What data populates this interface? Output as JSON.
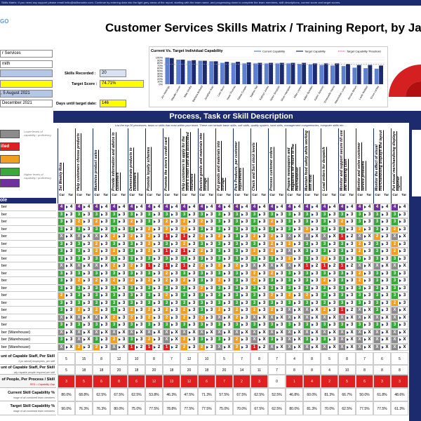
{
  "header": {
    "notice": "Skills Matrix:  If you need any support please email hello@skillsmatrix.com. Continue by entering data into the light grey areas of the report, starting with the team name, and progressing down to complete the team members, skill descriptions, current score and target scores.",
    "logo": "GO",
    "title": "Customer Services Skills Matrix / Training Report, by Jan"
  },
  "info": {
    "department": "r Services",
    "manager": "mith",
    "skills_recorded_label": "Skills Recorded :",
    "skills_recorded": "20",
    "target_score_label": "Target Score :",
    "target_score": "74.71%",
    "start_date": ", 5 August 2021",
    "target_date": "December 2021",
    "days_label": "Days until target date:",
    "days": "146"
  },
  "chart_data": {
    "type": "bar",
    "title": "Current Vs. Target Individual Capability",
    "categories": [
      "Jim Hastings",
      "Maudie Lemon",
      "Mike Ondra",
      "Barbara Binkard",
      "Jonathan Kian",
      "Liam Bunn",
      "Isaac Thomas",
      "Tobias Cooper",
      "Nathan Tait",
      "Kathryn Jones",
      "Helen Simpson",
      "Oliver Hampton",
      "Mike Leyton",
      "Adam Bywater",
      "Karen Jackson",
      "Emanuelle Harris",
      "Maximillian Lance",
      "Kenzie Atrium",
      "Louie Webber",
      "Grove Lanley"
    ],
    "series": [
      {
        "name": "Current Capability",
        "color": "#5b7fd1",
        "values": [
          100,
          92,
          88,
          88,
          86,
          80,
          80,
          78,
          78,
          78,
          78,
          78,
          76,
          74,
          72,
          70,
          68,
          62,
          60,
          58
        ]
      },
      {
        "name": "Target Capability",
        "color": "#1c2a6e",
        "values": [
          98,
          92,
          90,
          88,
          86,
          84,
          84,
          82,
          80,
          80,
          80,
          80,
          80,
          78,
          78,
          78,
          76,
          72,
          72,
          70
        ]
      }
    ],
    "threshold": {
      "name": "Target Capability Threshold",
      "color": "#e070c0",
      "value": 74.71
    },
    "ylim": [
      0,
      100
    ],
    "yticks": [
      {
        "value": 0,
        "label": "0%"
      },
      {
        "value": 10,
        "label": "10%"
      },
      {
        "value": 20,
        "label": "20%"
      },
      {
        "value": 30,
        "label": "30%"
      },
      {
        "value": 40,
        "label": "40%"
      },
      {
        "value": 50,
        "label": "50%"
      },
      {
        "value": 60,
        "label": "60%"
      },
      {
        "value": 70,
        "label": "70%"
      },
      {
        "value": 80,
        "label": "80%"
      },
      {
        "value": 90,
        "label": "90%"
      },
      {
        "value": 100,
        "label": "100%"
      }
    ],
    "grid": true
  },
  "matrix": {
    "title": "Process, Task or Skill Description",
    "subtitle": "List the top 20 processes, tasks or skills that exist within your team.  These can include basic skills, soft skills, quality system, hard skills, management competencies, computer skills etc.....",
    "legend": {
      "skilled": "illed",
      "low": "Lower levels of capability / proficiency",
      "high": "Higher levels of capability / proficiency"
    },
    "role_header": "ole",
    "cur_label": "Cur",
    "tar_label": "Tar",
    "skills": [
      "Set Weekly Rota",
      "Help customers choose products",
      "Maximise product sales",
      "Provide information and advice to customers",
      "Demonstrate products to customers",
      "Promote loyalty schemes",
      "Promote the store's credit card",
      "Help customers to apply for the store's credit card and associated insurance",
      "Receive goods and materials into storage",
      "Put goods and materials into storage",
      "Pick Products, per customer requirements",
      "Check and Sort stock levels",
      "Process customer orders",
      "Prepare newspapers and magazines for return to the merchandiser",
      "Maintain food safety while working with food",
      "Load orders for despatch",
      "Monitor and support secure till use and handling cash",
      "Monitor and solve customer service problems",
      "Monitor the effect of visual merchandising displays and layout",
      "Put visual merchandising displays together"
    ],
    "rows": [
      {
        "role": "ber",
        "cur": [
          4,
          4,
          4,
          4,
          4,
          4,
          4,
          4,
          4,
          4,
          4,
          4,
          4,
          4,
          4,
          4,
          4,
          4,
          4,
          4
        ],
        "tar": [
          4,
          4,
          4,
          4,
          4,
          4,
          4,
          4,
          4,
          4,
          4,
          4,
          4,
          4,
          4,
          4,
          4,
          4,
          4,
          4
        ]
      },
      {
        "role": "ber",
        "cur": [
          3,
          3,
          3,
          3,
          3,
          3,
          3,
          3,
          3,
          3,
          3,
          3,
          3,
          3,
          3,
          3,
          3,
          3,
          3,
          3
        ],
        "tar": [
          3,
          3,
          3,
          3,
          3,
          3,
          3,
          3,
          3,
          3,
          3,
          3,
          3,
          3,
          3,
          3,
          3,
          3,
          3,
          3
        ]
      },
      {
        "role": "ber",
        "cur": [
          3,
          2,
          2,
          3,
          2,
          3,
          2,
          2,
          2,
          3,
          3,
          3,
          2,
          3,
          3,
          3,
          2,
          3,
          3,
          3
        ],
        "tar": [
          3,
          3,
          3,
          3,
          3,
          3,
          3,
          3,
          3,
          3,
          3,
          3,
          3,
          3,
          3,
          3,
          3,
          3,
          3,
          3
        ]
      },
      {
        "role": "ber",
        "cur": [
          3,
          3,
          3,
          3,
          3,
          2,
          2,
          2,
          3,
          3,
          3,
          3,
          3,
          3,
          2,
          3,
          3,
          2,
          3,
          2
        ],
        "tar": [
          3,
          3,
          3,
          3,
          3,
          3,
          3,
          3,
          3,
          3,
          3,
          3,
          3,
          3,
          3,
          3,
          3,
          3,
          3,
          3
        ]
      },
      {
        "role": "ber",
        "cur": [
          "X",
          "X",
          "X",
          2,
          2,
          2,
          1,
          1,
          2,
          2,
          3,
          2,
          2,
          "X",
          "X",
          "X",
          1,
          "X",
          2,
          "X"
        ],
        "tar": [
          "X",
          "X",
          "X",
          3,
          3,
          3,
          2,
          2,
          3,
          3,
          3,
          3,
          3,
          "X",
          "X",
          "X",
          2,
          "X",
          3,
          "X"
        ]
      },
      {
        "role": "ber",
        "cur": [
          3,
          3,
          2,
          3,
          3,
          2,
          3,
          2,
          3,
          3,
          3,
          3,
          2,
          2,
          3,
          3,
          3,
          2,
          3,
          2
        ],
        "tar": [
          3,
          3,
          3,
          3,
          3,
          3,
          3,
          3,
          3,
          3,
          3,
          3,
          3,
          3,
          3,
          3,
          3,
          3,
          3,
          3
        ]
      },
      {
        "role": "ber",
        "cur": [
          3,
          3,
          2,
          2,
          3,
          2,
          1,
          1,
          2,
          3,
          3,
          2,
          2,
          "X",
          3,
          3,
          3,
          2,
          3,
          2
        ],
        "tar": [
          3,
          3,
          3,
          3,
          3,
          3,
          2,
          2,
          3,
          3,
          3,
          3,
          3,
          "X",
          3,
          3,
          3,
          3,
          3,
          3
        ]
      },
      {
        "role": "ber",
        "cur": [
          3,
          3,
          3,
          3,
          3,
          3,
          3,
          3,
          3,
          3,
          3,
          3,
          3,
          2,
          3,
          2,
          3,
          3,
          3,
          3
        ],
        "tar": [
          3,
          3,
          3,
          3,
          3,
          3,
          3,
          3,
          3,
          3,
          3,
          3,
          3,
          3,
          3,
          3,
          3,
          3,
          3,
          3
        ]
      },
      {
        "role": "ber",
        "cur": [
          "X",
          "X",
          "X",
          2,
          2,
          1,
          1,
          1,
          2,
          2,
          2,
          "X",
          "X",
          "X",
          1,
          1,
          1,
          "X",
          "X",
          "X"
        ],
        "tar": [
          "X",
          "X",
          "X",
          3,
          3,
          2,
          2,
          2,
          3,
          3,
          3,
          "X",
          "X",
          "X",
          2,
          2,
          2,
          "X",
          "X",
          "X"
        ]
      },
      {
        "role": "ber",
        "cur": [
          3,
          3,
          3,
          3,
          3,
          3,
          2,
          3,
          3,
          3,
          3,
          2,
          2,
          3,
          3,
          3,
          3,
          2,
          3,
          3
        ],
        "tar": [
          3,
          3,
          3,
          3,
          3,
          3,
          3,
          3,
          3,
          3,
          3,
          3,
          3,
          3,
          3,
          3,
          3,
          3,
          3,
          3
        ]
      },
      {
        "role": "ber",
        "cur": [
          3,
          2,
          2,
          2,
          2,
          2,
          2,
          2,
          3,
          2,
          3,
          2,
          3,
          3,
          3,
          2,
          3,
          2,
          3,
          3
        ],
        "tar": [
          3,
          3,
          3,
          3,
          3,
          3,
          3,
          3,
          3,
          3,
          3,
          3,
          3,
          3,
          3,
          3,
          3,
          3,
          3,
          3
        ]
      },
      {
        "role": "ber",
        "cur": [
          3,
          3,
          3,
          3,
          3,
          3,
          3,
          3,
          2,
          3,
          3,
          3,
          3,
          3,
          3,
          3,
          3,
          3,
          3,
          3
        ],
        "tar": [
          3,
          3,
          3,
          3,
          3,
          3,
          3,
          3,
          3,
          3,
          3,
          3,
          3,
          3,
          3,
          3,
          3,
          3,
          3,
          3
        ]
      },
      {
        "role": "ber",
        "cur": [
          2,
          3,
          3,
          3,
          3,
          3,
          2,
          3,
          3,
          3,
          3,
          3,
          2,
          2,
          2,
          3,
          3,
          3,
          3,
          3
        ],
        "tar": [
          3,
          3,
          3,
          3,
          3,
          3,
          3,
          3,
          3,
          3,
          3,
          3,
          3,
          3,
          3,
          3,
          3,
          3,
          3,
          3
        ]
      },
      {
        "role": "ber",
        "cur": [
          3,
          3,
          3,
          3,
          3,
          3,
          3,
          3,
          3,
          3,
          3,
          3,
          3,
          3,
          3,
          3,
          3,
          3,
          3,
          2
        ],
        "tar": [
          3,
          3,
          3,
          3,
          3,
          3,
          3,
          3,
          3,
          3,
          3,
          3,
          3,
          3,
          3,
          3,
          3,
          3,
          3,
          3
        ]
      },
      {
        "role": "ber",
        "cur": [
          3,
          2,
          2,
          3,
          2,
          2,
          2,
          2,
          3,
          2,
          2,
          2,
          2,
          "X",
          "X",
          2,
          1,
          "X",
          3,
          "X"
        ],
        "tar": [
          3,
          3,
          3,
          3,
          3,
          3,
          3,
          3,
          3,
          3,
          3,
          3,
          3,
          "X",
          "X",
          3,
          2,
          "X",
          3,
          "X"
        ]
      },
      {
        "role": "ber",
        "cur": [
          "X",
          "X",
          "X",
          2,
          2,
          2,
          2,
          2,
          2,
          "X",
          2,
          "X",
          "X",
          "X",
          "X",
          "X",
          "X",
          "X",
          "X",
          "X"
        ],
        "tar": [
          "X",
          "X",
          "X",
          3,
          3,
          3,
          3,
          3,
          3,
          "X",
          3,
          "X",
          "X",
          "X",
          "X",
          "X",
          "X",
          "X",
          "X",
          "X"
        ]
      },
      {
        "role": "ber",
        "cur": [
          3,
          3,
          3,
          3,
          3,
          3,
          3,
          3,
          3,
          3,
          3,
          3,
          3,
          3,
          3,
          3,
          3,
          3,
          3,
          3
        ],
        "tar": [
          3,
          3,
          3,
          3,
          3,
          3,
          3,
          3,
          3,
          3,
          3,
          3,
          3,
          3,
          3,
          3,
          3,
          3,
          3,
          3
        ]
      },
      {
        "role": "ber (Warehouse)",
        "cur": [
          "X",
          "X",
          "X",
          "X",
          "X",
          "X",
          "X",
          "X",
          "X",
          "X",
          "X",
          "X",
          "X",
          "X",
          "X",
          "X",
          "X",
          "X",
          "X",
          "X"
        ],
        "tar": [
          "X",
          "X",
          "X",
          "X",
          "X",
          "X",
          "X",
          "X",
          "X",
          "X",
          "X",
          "X",
          "X",
          "X",
          "X",
          "X",
          "X",
          "X",
          "X",
          "X"
        ]
      },
      {
        "role": "ber (Warehouse)",
        "cur": [
          3,
          "X",
          3,
          2,
          3,
          2,
          "X",
          2,
          3,
          3,
          2,
          "X",
          3,
          "X",
          3,
          3,
          "X",
          "X",
          "X",
          "X"
        ],
        "tar": [
          3,
          "X",
          3,
          3,
          3,
          3,
          "X",
          3,
          3,
          3,
          3,
          "X",
          3,
          "X",
          3,
          3,
          "X",
          "X",
          "X",
          "X"
        ]
      },
      {
        "role": "ber (Warehouse)",
        "cur": [
          "X",
          2,
          2,
          "X",
          1,
          1,
          1,
          2,
          2,
          "X",
          2,
          1,
          "X",
          "X",
          "X",
          "X",
          "X",
          "X",
          "X",
          "X"
        ],
        "tar": [
          "X",
          3,
          3,
          "X",
          2,
          2,
          2,
          3,
          3,
          "X",
          3,
          2,
          "X",
          "X",
          "X",
          "X",
          "X",
          "X",
          "X",
          "X"
        ]
      }
    ],
    "summary": [
      {
        "label": "unt of Capable Staff, Per Skill",
        "sub": "3 (or above) employees, per skill",
        "values": [
          5,
          15,
          8,
          12,
          10,
          8,
          7,
          12,
          10,
          5,
          7,
          8,
          7,
          4,
          8,
          5,
          8,
          7,
          6,
          5
        ]
      },
      {
        "label": "unt of Capable Staff, Per Skill",
        "sub": "ally capable people required per skill",
        "values": [
          5,
          18,
          18,
          20,
          18,
          20,
          18,
          20,
          18,
          20,
          14,
          11,
          7,
          8,
          8,
          4,
          10,
          8,
          8,
          8
        ]
      },
      {
        "label": "of People, Per Process / Skill",
        "sub": "RED = Capability Gap",
        "values": [
          3,
          5,
          6,
          8,
          6,
          12,
          13,
          12,
          6,
          7,
          2,
          3,
          0,
          1,
          4,
          2,
          5,
          6,
          3,
          3
        ]
      },
      {
        "label": "Current Skill Capability %",
        "sub": "ntage of all combined team members",
        "values": [
          "80.0%",
          "68.8%",
          "62.5%",
          "67.5%",
          "62.5%",
          "53.8%",
          "46.3%",
          "47.5%",
          "71.3%",
          "57.5%",
          "67.5%",
          "62.5%",
          "52.5%",
          "46.8%",
          "60.0%",
          "81.3%",
          "66.7%",
          "50.0%",
          "61.8%",
          "48.6%"
        ]
      },
      {
        "label": "Target Skill Capability %",
        "sub": "ntage of all combined team members",
        "values": [
          "90.0%",
          "76.3%",
          "76.3%",
          "80.0%",
          "75.0%",
          "77.5%",
          "78.8%",
          "77.5%",
          "77.5%",
          "75.0%",
          "70.0%",
          "67.5%",
          "62.5%",
          "80.0%",
          "81.3%",
          "70.0%",
          "62.5%",
          "77.5%",
          "77.5%",
          "61.3%"
        ]
      }
    ]
  }
}
